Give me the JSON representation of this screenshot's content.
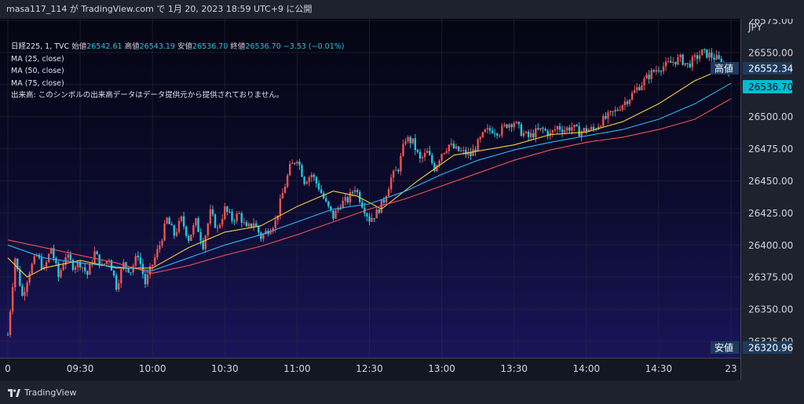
{
  "header": {
    "text": "masa117_114 が TradingView.com で 1月 20, 2023 18:59 UTC+9 に公開"
  },
  "legend": {
    "symbol": "日経225, 1, TVC",
    "open_label": "始値",
    "open": "26542.61",
    "high_label": "高値",
    "high": "26543.19",
    "low_label": "安値",
    "low": "26536.70",
    "close_label": "終値",
    "close": "26536.70",
    "change": "−3.53 (−0.01%)",
    "ma_lines": [
      "MA (25, close)",
      "MA (50, close)",
      "MA (75, close)"
    ],
    "volume_note": "出来高: このシンボルの出来高データはデータ提供元から提供されておりません。"
  },
  "price_axis": {
    "currency": "JPY",
    "high_tag_label": "高値",
    "high_tag_value": "26552.34",
    "last_price": "26536.70",
    "low_tag_label": "安値",
    "low_tag_value": "26320.96"
  },
  "footer": {
    "brand": "TradingView"
  },
  "colors": {
    "up": "#ef5350",
    "down": "#26c6da",
    "ma25": "#f4d03f",
    "ma50": "#29b6f6",
    "ma75": "#ef5350",
    "last_price_bg": "#00bcd4"
  },
  "chart_data": {
    "type": "candlestick",
    "interval": "1 minute",
    "ylim": [
      26320,
      26580
    ],
    "y_ticks": [
      26575,
      26550,
      26525,
      26500,
      26475,
      26450,
      26425,
      26400,
      26375,
      26350,
      26325
    ],
    "y_tick_labels": [
      "26575.00",
      "26550.00",
      "26525.00",
      "26500.00",
      "26475.00",
      "26450.00",
      "26425.00",
      "26400.00",
      "26375.00",
      "26350.00",
      "26325.00"
    ],
    "x_ticks": [
      {
        "label": "0",
        "t": 0
      },
      {
        "label": "09:30",
        "t": 30
      },
      {
        "label": "10:00",
        "t": 60
      },
      {
        "label": "10:30",
        "t": 90
      },
      {
        "label": "11:00",
        "t": 120
      },
      {
        "label": "12:30",
        "t": 150
      },
      {
        "label": "13:00",
        "t": 180
      },
      {
        "label": "13:30",
        "t": 210
      },
      {
        "label": "14:00",
        "t": 240
      },
      {
        "label": "14:30",
        "t": 270
      },
      {
        "label": "23",
        "t": 300
      }
    ],
    "t_range": [
      0,
      302
    ],
    "close_path": [
      [
        0,
        26330
      ],
      [
        3,
        26390
      ],
      [
        6,
        26360
      ],
      [
        9,
        26380
      ],
      [
        12,
        26392
      ],
      [
        15,
        26380
      ],
      [
        18,
        26398
      ],
      [
        21,
        26375
      ],
      [
        24,
        26392
      ],
      [
        27,
        26384
      ],
      [
        30,
        26386
      ],
      [
        33,
        26377
      ],
      [
        36,
        26394
      ],
      [
        39,
        26383
      ],
      [
        42,
        26390
      ],
      [
        45,
        26368
      ],
      [
        48,
        26385
      ],
      [
        51,
        26380
      ],
      [
        54,
        26393
      ],
      [
        57,
        26370
      ],
      [
        60,
        26385
      ],
      [
        63,
        26400
      ],
      [
        66,
        26420
      ],
      [
        69,
        26408
      ],
      [
        72,
        26420
      ],
      [
        75,
        26405
      ],
      [
        78,
        26418
      ],
      [
        81,
        26400
      ],
      [
        84,
        26425
      ],
      [
        87,
        26412
      ],
      [
        90,
        26428
      ],
      [
        93,
        26420
      ],
      [
        96,
        26424
      ],
      [
        99,
        26412
      ],
      [
        102,
        26418
      ],
      [
        105,
        26406
      ],
      [
        108,
        26412
      ],
      [
        111,
        26418
      ],
      [
        114,
        26440
      ],
      [
        117,
        26460
      ],
      [
        120,
        26468
      ],
      [
        123,
        26450
      ],
      [
        126,
        26455
      ],
      [
        129,
        26445
      ],
      [
        132,
        26432
      ],
      [
        135,
        26422
      ],
      [
        138,
        26432
      ],
      [
        141,
        26435
      ],
      [
        144,
        26445
      ],
      [
        147,
        26432
      ],
      [
        150,
        26420
      ],
      [
        153,
        26425
      ],
      [
        156,
        26435
      ],
      [
        159,
        26452
      ],
      [
        162,
        26460
      ],
      [
        165,
        26483
      ],
      [
        168,
        26480
      ],
      [
        171,
        26466
      ],
      [
        174,
        26472
      ],
      [
        177,
        26460
      ],
      [
        180,
        26472
      ],
      [
        183,
        26478
      ],
      [
        186,
        26474
      ],
      [
        189,
        26472
      ],
      [
        192,
        26470
      ],
      [
        195,
        26479
      ],
      [
        198,
        26488
      ],
      [
        201,
        26490
      ],
      [
        204,
        26488
      ],
      [
        207,
        26494
      ],
      [
        210,
        26496
      ],
      [
        213,
        26488
      ],
      [
        216,
        26484
      ],
      [
        219,
        26488
      ],
      [
        222,
        26490
      ],
      [
        225,
        26486
      ],
      [
        228,
        26492
      ],
      [
        231,
        26490
      ],
      [
        234,
        26492
      ],
      [
        237,
        26488
      ],
      [
        240,
        26490
      ],
      [
        243,
        26490
      ],
      [
        246,
        26496
      ],
      [
        249,
        26500
      ],
      [
        252,
        26504
      ],
      [
        255,
        26510
      ],
      [
        258,
        26515
      ],
      [
        261,
        26522
      ],
      [
        264,
        26528
      ],
      [
        267,
        26534
      ],
      [
        270,
        26538
      ],
      [
        273,
        26540
      ],
      [
        276,
        26543
      ],
      [
        279,
        26545
      ],
      [
        282,
        26540
      ],
      [
        285,
        26545
      ],
      [
        288,
        26550
      ],
      [
        291,
        26548
      ],
      [
        294,
        26545
      ],
      [
        297,
        26540
      ],
      [
        300,
        26536.7
      ]
    ],
    "ma": [
      {
        "name": "MA (25, close)",
        "color_key": "ma25",
        "points": [
          [
            0,
            26390
          ],
          [
            8,
            26375
          ],
          [
            15,
            26382
          ],
          [
            30,
            26388
          ],
          [
            45,
            26382
          ],
          [
            60,
            26382
          ],
          [
            75,
            26398
          ],
          [
            90,
            26410
          ],
          [
            105,
            26415
          ],
          [
            120,
            26430
          ],
          [
            135,
            26442
          ],
          [
            145,
            26438
          ],
          [
            155,
            26428
          ],
          [
            170,
            26450
          ],
          [
            185,
            26470
          ],
          [
            210,
            26478
          ],
          [
            225,
            26486
          ],
          [
            240,
            26488
          ],
          [
            255,
            26496
          ],
          [
            270,
            26510
          ],
          [
            285,
            26528
          ],
          [
            300,
            26540
          ]
        ]
      },
      {
        "name": "MA (50, close)",
        "color_key": "ma50",
        "points": [
          [
            0,
            26400
          ],
          [
            15,
            26390
          ],
          [
            30,
            26386
          ],
          [
            45,
            26383
          ],
          [
            60,
            26380
          ],
          [
            75,
            26390
          ],
          [
            90,
            26400
          ],
          [
            105,
            26408
          ],
          [
            120,
            26418
          ],
          [
            135,
            26428
          ],
          [
            150,
            26432
          ],
          [
            165,
            26442
          ],
          [
            180,
            26455
          ],
          [
            195,
            26466
          ],
          [
            210,
            26474
          ],
          [
            225,
            26480
          ],
          [
            240,
            26485
          ],
          [
            255,
            26490
          ],
          [
            270,
            26498
          ],
          [
            285,
            26510
          ],
          [
            300,
            26526
          ]
        ]
      },
      {
        "name": "MA (75, close)",
        "color_key": "ma75",
        "points": [
          [
            0,
            26404
          ],
          [
            15,
            26398
          ],
          [
            30,
            26392
          ],
          [
            45,
            26386
          ],
          [
            60,
            26378
          ],
          [
            75,
            26384
          ],
          [
            90,
            26392
          ],
          [
            105,
            26399
          ],
          [
            120,
            26408
          ],
          [
            135,
            26418
          ],
          [
            150,
            26428
          ],
          [
            165,
            26436
          ],
          [
            180,
            26446
          ],
          [
            195,
            26456
          ],
          [
            210,
            26466
          ],
          [
            225,
            26474
          ],
          [
            240,
            26480
          ],
          [
            255,
            26484
          ],
          [
            270,
            26490
          ],
          [
            285,
            26498
          ],
          [
            300,
            26514
          ]
        ]
      }
    ],
    "grid": true
  }
}
